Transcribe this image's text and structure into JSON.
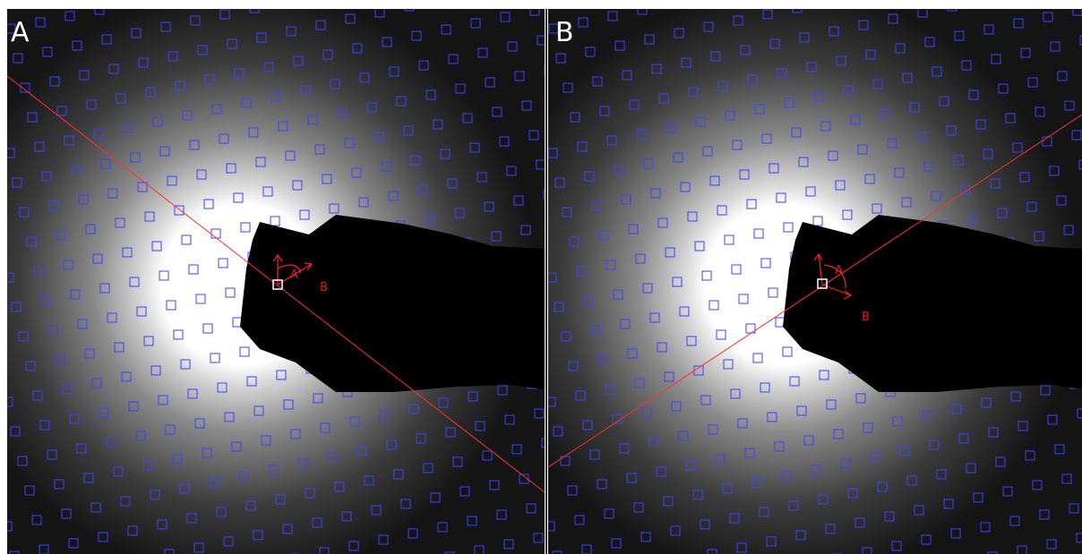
{
  "panels": [
    {
      "label": "A",
      "annotations": {
        "vector_a": "A",
        "vector_b": "B"
      }
    },
    {
      "label": "B",
      "annotations": {
        "vector_a": "A",
        "vector_b": "B"
      }
    }
  ]
}
